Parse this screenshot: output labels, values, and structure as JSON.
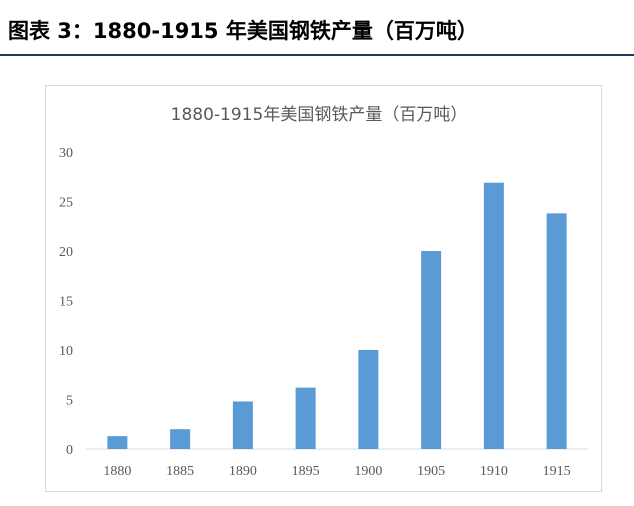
{
  "figure": {
    "caption": "图表 3：1880-1915 年美国钢铁产量（百万吨）"
  },
  "colors": {
    "bar": "#5b9bd5",
    "caption_rule": "#1f3864",
    "axis_text": "#595959",
    "baseline": "#d9d9d9"
  },
  "chart_data": {
    "type": "bar",
    "title": "1880-1915年美国钢铁产量（百万吨）",
    "xlabel": "",
    "ylabel": "",
    "categories": [
      "1880",
      "1885",
      "1890",
      "1895",
      "1900",
      "1905",
      "1910",
      "1915"
    ],
    "values": [
      1.3,
      2.0,
      4.8,
      6.2,
      10.0,
      20.0,
      26.9,
      23.8
    ],
    "ylim": [
      0,
      30
    ],
    "yticks": [
      "0",
      "5",
      "10",
      "15",
      "20",
      "25",
      "30"
    ],
    "grid": false,
    "legend": "none"
  }
}
